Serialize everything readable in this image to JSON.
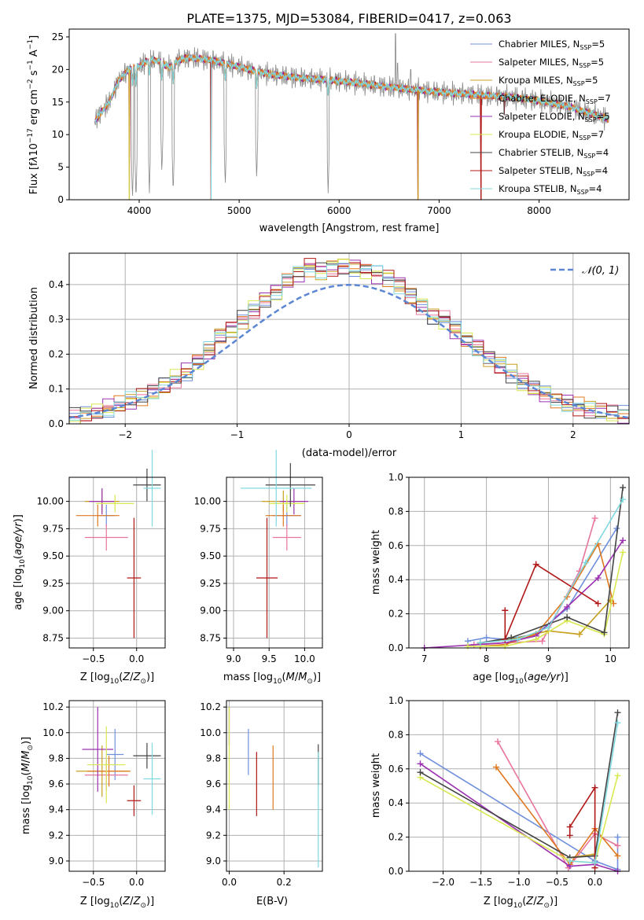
{
  "figure": {
    "title": "PLATE=1375, MJD=53084, FIBERID=0417, z=0.063"
  },
  "colors": {
    "s0": "#6f8fdc",
    "s1": "#e8769c",
    "s2": "#c8a020",
    "s3": "#e07820",
    "s4": "#9b30b0",
    "s5": "#d8e850",
    "s6": "#444444",
    "s7": "#b01818",
    "s8": "#80d8e0",
    "data": "#888888",
    "gauss": "#5b86d4",
    "grid": "#b0b0b0"
  },
  "chart_data": [
    {
      "id": "spectrum",
      "type": "line",
      "xlabel": "wavelength [Angstrom, rest frame]",
      "ylabel": "Flux [f_λ 10^{-17} erg cm^{-2} s^{-1} A^{-1}]",
      "xlim": [
        3300,
        8900
      ],
      "ylim": [
        0,
        26.2
      ],
      "xticks": [
        4000,
        5000,
        6000,
        7000,
        8000
      ],
      "yticks": [
        0,
        5,
        10,
        15,
        20,
        25
      ],
      "grid": false,
      "legend": "top-right",
      "legend_entries": [
        {
          "name": "Chabrier MILES",
          "nssp": "5"
        },
        {
          "name": "Salpeter MILES",
          "nssp": "5"
        },
        {
          "name": "Kroupa MILES",
          "nssp": "5"
        },
        {
          "name": "Chabrier ELODIE",
          "nssp": "7"
        },
        {
          "name": "Salpeter ELODIE",
          "nssp": "5"
        },
        {
          "name": "Kroupa ELODIE",
          "nssp": "7"
        },
        {
          "name": "Chabrier STELIB",
          "nssp": "4"
        },
        {
          "name": "Salpeter STELIB",
          "nssp": "4"
        },
        {
          "name": "Kroupa STELIB",
          "nssp": "4"
        }
      ],
      "continuum": [
        [
          3550,
          12.0
        ],
        [
          3700,
          15.0
        ],
        [
          3800,
          18.5
        ],
        [
          3900,
          20.0
        ],
        [
          4000,
          20.5
        ],
        [
          4100,
          21.5
        ],
        [
          4200,
          21.3
        ],
        [
          4300,
          20.3
        ],
        [
          4400,
          21.5
        ],
        [
          4500,
          21.8
        ],
        [
          4700,
          21.5
        ],
        [
          4900,
          20.8
        ],
        [
          5100,
          20.0
        ],
        [
          5300,
          19.3
        ],
        [
          5600,
          18.7
        ],
        [
          5900,
          18.4
        ],
        [
          6200,
          17.9
        ],
        [
          6500,
          17.3
        ],
        [
          6800,
          16.8
        ],
        [
          7100,
          16.4
        ],
        [
          7400,
          16.1
        ],
        [
          7700,
          15.8
        ],
        [
          8000,
          15.2
        ],
        [
          8300,
          14.3
        ],
        [
          8500,
          13.3
        ],
        [
          8700,
          12.4
        ]
      ],
      "dips": [
        [
          3933,
          0
        ],
        [
          3968,
          0
        ],
        [
          4102,
          1
        ],
        [
          4227,
          4
        ],
        [
          4340,
          1
        ],
        [
          4861,
          2
        ],
        [
          5175,
          3
        ],
        [
          5890,
          1
        ]
      ],
      "spikes": [
        [
          6563,
          25.5
        ],
        [
          6583,
          21
        ],
        [
          6716,
          20
        ]
      ],
      "model_dropouts": [
        [
          3900,
          0
        ],
        [
          4720,
          0
        ],
        [
          6790,
          0
        ],
        [
          7420,
          0
        ],
        [
          7650,
          13.0
        ]
      ]
    },
    {
      "id": "residual-hist",
      "type": "bar",
      "xlabel": "(data-model)/error",
      "ylabel": "Normed distribution",
      "xlim": [
        -2.5,
        2.5
      ],
      "ylim": [
        0,
        0.49
      ],
      "xticks": [
        -2,
        -1,
        0,
        1,
        2
      ],
      "yticks": [
        0.0,
        0.1,
        0.2,
        0.3,
        0.4
      ],
      "grid": true,
      "legend": "top-right",
      "legend_label": "N(0,1)",
      "bin_width": 0.1,
      "bin_centers": [
        -2.45,
        -2.35,
        -2.25,
        -2.15,
        -2.05,
        -1.95,
        -1.85,
        -1.75,
        -1.65,
        -1.55,
        -1.45,
        -1.35,
        -1.25,
        -1.15,
        -1.05,
        -0.95,
        -0.85,
        -0.75,
        -0.65,
        -0.55,
        -0.45,
        -0.35,
        -0.25,
        -0.15,
        -0.05,
        0.05,
        0.15,
        0.25,
        0.35,
        0.45,
        0.55,
        0.65,
        0.75,
        0.85,
        0.95,
        1.05,
        1.15,
        1.25,
        1.35,
        1.45,
        1.55,
        1.65,
        1.75,
        1.85,
        1.95,
        2.05,
        2.15,
        2.25,
        2.35,
        2.45
      ],
      "envelope": [
        0.02,
        0.025,
        0.035,
        0.045,
        0.055,
        0.065,
        0.075,
        0.09,
        0.11,
        0.13,
        0.15,
        0.18,
        0.21,
        0.25,
        0.27,
        0.3,
        0.33,
        0.36,
        0.38,
        0.41,
        0.43,
        0.45,
        0.44,
        0.45,
        0.455,
        0.45,
        0.44,
        0.43,
        0.42,
        0.4,
        0.37,
        0.34,
        0.31,
        0.3,
        0.27,
        0.24,
        0.22,
        0.19,
        0.17,
        0.145,
        0.12,
        0.1,
        0.085,
        0.07,
        0.06,
        0.05,
        0.04,
        0.035,
        0.03,
        0.025
      ]
    },
    {
      "id": "age-vs-Z",
      "type": "scatter",
      "xlabel": "Z [log10(Z/Z⊙)]",
      "ylabel": "age [log10(age/yr)]",
      "xlim": [
        -0.78,
        0.33
      ],
      "ylim": [
        8.66,
        10.22
      ],
      "xticks": [
        -0.5,
        0.0
      ],
      "yticks": [
        8.75,
        9.0,
        9.25,
        9.5,
        9.75,
        10.0
      ],
      "grid": true,
      "points": [
        {
          "s": 0,
          "x": -0.35,
          "y": 9.87,
          "xe": 0.1,
          "ye": 0.1
        },
        {
          "s": 1,
          "x": -0.35,
          "y": 9.67,
          "xe": 0.25,
          "ye": 0.12
        },
        {
          "s": 2,
          "x": -0.4,
          "y": 10.0,
          "xe": 0.2,
          "ye": 0.1
        },
        {
          "s": 3,
          "x": -0.45,
          "y": 9.87,
          "xe": 0.25,
          "ye": 0.1
        },
        {
          "s": 4,
          "x": -0.4,
          "y": 10.0,
          "xe": 0.15,
          "ye": 0.12
        },
        {
          "s": 5,
          "x": -0.25,
          "y": 9.98,
          "xe": 0.22,
          "ye": 0.08
        },
        {
          "s": 6,
          "x": 0.12,
          "y": 10.15,
          "xe": 0.16,
          "ye": 0.15
        },
        {
          "s": 7,
          "x": -0.03,
          "y": 9.3,
          "xe": 0.08,
          "ye": 0.55
        },
        {
          "s": 8,
          "x": 0.18,
          "y": 10.12,
          "xe": 0.1,
          "ye": 0.35
        }
      ]
    },
    {
      "id": "age-vs-mass",
      "type": "scatter",
      "xlabel": "mass [log10(M/M⊙)]",
      "ylabel": "",
      "xlim": [
        8.9,
        10.25
      ],
      "ylim": [
        8.66,
        10.22
      ],
      "xticks": [
        9.0,
        9.5,
        10.0
      ],
      "yticks": [
        8.75,
        9.0,
        9.25,
        9.5,
        9.75,
        10.0
      ],
      "grid": true,
      "points": [
        {
          "s": 0,
          "x": 9.75,
          "y": 9.87,
          "xe": 0.2,
          "ye": 0.1
        },
        {
          "s": 1,
          "x": 9.75,
          "y": 9.67,
          "xe": 0.2,
          "ye": 0.12
        },
        {
          "s": 2,
          "x": 9.7,
          "y": 10.0,
          "xe": 0.3,
          "ye": 0.1
        },
        {
          "s": 3,
          "x": 9.7,
          "y": 9.87,
          "xe": 0.25,
          "ye": 0.1
        },
        {
          "s": 4,
          "x": 9.85,
          "y": 10.0,
          "xe": 0.2,
          "ye": 0.12
        },
        {
          "s": 5,
          "x": 9.75,
          "y": 9.98,
          "xe": 0.25,
          "ye": 0.08
        },
        {
          "s": 6,
          "x": 9.8,
          "y": 10.15,
          "xe": 0.35,
          "ye": 0.2
        },
        {
          "s": 7,
          "x": 9.47,
          "y": 9.3,
          "xe": 0.15,
          "ye": 0.55
        },
        {
          "s": 8,
          "x": 9.6,
          "y": 10.12,
          "xe": 0.5,
          "ye": 0.35
        }
      ]
    },
    {
      "id": "mass-weight-vs-age",
      "type": "line",
      "xlabel": "age [log10(age/yr)]",
      "ylabel": "mass weight",
      "xlim": [
        6.75,
        10.3
      ],
      "ylim": [
        0.0,
        1.0
      ],
      "xticks": [
        7,
        8,
        9,
        10
      ],
      "yticks": [
        0.0,
        0.2,
        0.4,
        0.6,
        0.8,
        1.0
      ],
      "grid": true,
      "series": [
        {
          "s": 0,
          "x": [
            7.7,
            8.0,
            8.3,
            8.8,
            9.3,
            10.1
          ],
          "y": [
            0.04,
            0.06,
            0.05,
            0.08,
            0.23,
            0.7
          ]
        },
        {
          "s": 1,
          "x": [
            7.8,
            8.3,
            8.9,
            9.5,
            9.75
          ],
          "y": [
            0.02,
            0.03,
            0.04,
            0.45,
            0.76
          ]
        },
        {
          "s": 2,
          "x": [
            7.9,
            8.4,
            9.0,
            9.5,
            10.0
          ],
          "y": [
            0.03,
            0.05,
            0.1,
            0.08,
            0.28
          ]
        },
        {
          "s": 3,
          "x": [
            7.9,
            8.3,
            8.8,
            9.3,
            9.8,
            10.05
          ],
          "y": [
            0.01,
            0.02,
            0.08,
            0.3,
            0.61,
            0.26
          ]
        },
        {
          "s": 4,
          "x": [
            7.0,
            8.3,
            8.8,
            9.3,
            9.8,
            10.2
          ],
          "y": [
            0.0,
            0.03,
            0.07,
            0.24,
            0.41,
            0.63
          ]
        },
        {
          "s": 5,
          "x": [
            7.7,
            8.3,
            8.8,
            9.3,
            9.9,
            10.2
          ],
          "y": [
            0.01,
            0.01,
            0.05,
            0.16,
            0.08,
            0.56
          ]
        },
        {
          "s": 6,
          "x": [
            7.9,
            8.4,
            9.3,
            9.9,
            10.2
          ],
          "y": [
            0.03,
            0.06,
            0.18,
            0.09,
            0.94
          ]
        },
        {
          "s": 7,
          "x": [
            8.3,
            8.3,
            8.8,
            9.8
          ],
          "y": [
            0.22,
            0.05,
            0.49,
            0.26
          ]
        },
        {
          "s": 8,
          "x": [
            7.9,
            8.5,
            9.0,
            9.6,
            10.2
          ],
          "y": [
            0.03,
            0.05,
            0.12,
            0.5,
            0.87
          ]
        }
      ]
    },
    {
      "id": "mass-vs-Z",
      "type": "scatter",
      "xlabel": "Z [log10(Z/Z⊙)]",
      "ylabel": "mass [log10(M/M⊙)]",
      "xlim": [
        -0.78,
        0.33
      ],
      "ylim": [
        8.92,
        10.25
      ],
      "xticks": [
        -0.5,
        0.0
      ],
      "yticks": [
        9.0,
        9.2,
        9.4,
        9.6,
        9.8,
        10.0,
        10.2
      ],
      "grid": true,
      "points": [
        {
          "s": 0,
          "x": -0.25,
          "y": 9.83,
          "xe": 0.1,
          "ye": 0.2
        },
        {
          "s": 1,
          "x": -0.35,
          "y": 9.67,
          "xe": 0.25,
          "ye": 0.12
        },
        {
          "s": 2,
          "x": -0.4,
          "y": 9.7,
          "xe": 0.3,
          "ye": 0.2
        },
        {
          "s": 3,
          "x": -0.32,
          "y": 9.7,
          "xe": 0.25,
          "ye": 0.12
        },
        {
          "s": 4,
          "x": -0.45,
          "y": 9.87,
          "xe": 0.18,
          "ye": 0.33
        },
        {
          "s": 5,
          "x": -0.35,
          "y": 9.75,
          "xe": 0.22,
          "ye": 0.3
        },
        {
          "s": 6,
          "x": 0.12,
          "y": 9.82,
          "xe": 0.16,
          "ye": 0.1
        },
        {
          "s": 7,
          "x": -0.03,
          "y": 9.47,
          "xe": 0.08,
          "ye": 0.12
        },
        {
          "s": 8,
          "x": 0.18,
          "y": 9.64,
          "xe": 0.1,
          "ye": 0.28
        }
      ]
    },
    {
      "id": "mass-vs-ebv",
      "type": "scatter",
      "xlabel": "E(B-V)",
      "ylabel": "",
      "xlim": [
        -0.01,
        0.34
      ],
      "ylim": [
        8.92,
        10.25
      ],
      "xticks": [
        0.0,
        0.2
      ],
      "yticks": [
        9.0,
        9.2,
        9.4,
        9.6,
        9.8,
        10.0,
        10.2
      ],
      "grid": true,
      "points": [
        {
          "s": 0,
          "x": 0.07,
          "y": 9.85,
          "xe": 0,
          "ye": 0.18
        },
        {
          "s": 3,
          "x": 0.16,
          "y": 9.65,
          "xe": 0,
          "ye": 0.25
        },
        {
          "s": 7,
          "x": 0.1,
          "y": 9.6,
          "xe": 0,
          "ye": 0.25
        },
        {
          "s": 4,
          "x": 0.0,
          "y": 10.05,
          "xe": 0,
          "ye": 0.15
        },
        {
          "s": 5,
          "x": 0.0,
          "y": 9.8,
          "xe": 0,
          "ye": 0.4
        },
        {
          "s": 6,
          "x": 0.325,
          "y": 9.75,
          "xe": 0,
          "ye": 0.16
        },
        {
          "s": 8,
          "x": 0.325,
          "y": 9.4,
          "xe": 0,
          "ye": 0.45
        }
      ]
    },
    {
      "id": "mass-weight-vs-Z",
      "type": "line",
      "xlabel": "Z [log10(Z/Z⊙)]",
      "ylabel": "mass weight",
      "xlim": [
        -2.45,
        0.45
      ],
      "ylim": [
        0.0,
        1.0
      ],
      "xticks": [
        -2.0,
        -1.5,
        -1.0,
        -0.5,
        0.0
      ],
      "yticks": [
        0.0,
        0.2,
        0.4,
        0.6,
        0.8,
        1.0
      ],
      "grid": true,
      "series": [
        {
          "s": 0,
          "x": [
            -2.3,
            0.0,
            0.3,
            0.3
          ],
          "y": [
            0.69,
            0.06,
            0.01,
            0.2
          ]
        },
        {
          "s": 1,
          "x": [
            -1.28,
            -0.35,
            0.0,
            0.3
          ],
          "y": [
            0.76,
            0.02,
            0.22,
            0.15
          ]
        },
        {
          "s": 2,
          "x": [
            -0.33,
            0.0
          ],
          "y": [
            0.08,
            0.1
          ]
        },
        {
          "s": 3,
          "x": [
            -1.3,
            -0.33,
            0.0,
            0.3
          ],
          "y": [
            0.61,
            0.04,
            0.25,
            0.09
          ]
        },
        {
          "s": 4,
          "x": [
            -2.3,
            -0.33,
            0.0,
            0.3
          ],
          "y": [
            0.63,
            0.03,
            0.04,
            0.0
          ]
        },
        {
          "s": 5,
          "x": [
            -2.3,
            -0.33,
            0.0,
            0.3
          ],
          "y": [
            0.55,
            0.06,
            0.05,
            0.56
          ]
        },
        {
          "s": 6,
          "x": [
            -2.3,
            -0.33,
            0.0,
            0.3
          ],
          "y": [
            0.58,
            0.08,
            0.09,
            0.93
          ]
        },
        {
          "s": 7,
          "x": [
            -0.33,
            -0.33,
            0.0,
            0.0
          ],
          "y": [
            0.21,
            0.26,
            0.49,
            0.02
          ]
        },
        {
          "s": 8,
          "x": [
            -0.33,
            0.0,
            0.3
          ],
          "y": [
            0.06,
            0.05,
            0.87
          ]
        }
      ]
    }
  ]
}
